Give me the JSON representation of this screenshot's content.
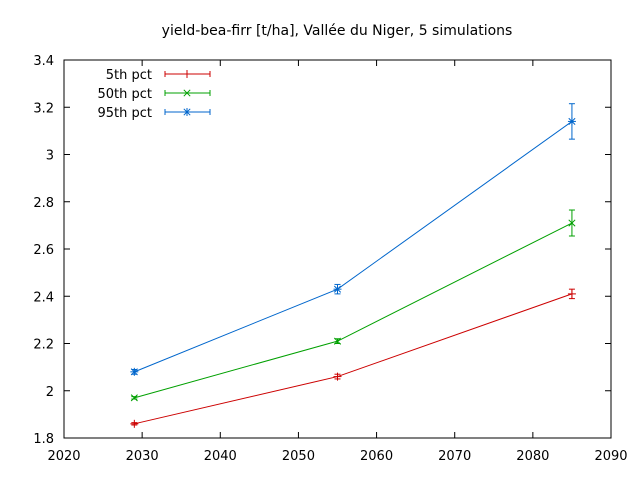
{
  "chart_data": {
    "type": "line",
    "title": "yield-bea-firr [t/ha], Vallée du Niger, 5 simulations",
    "xlabel": "",
    "ylabel": "",
    "xlim": [
      2020,
      2090
    ],
    "ylim": [
      1.8,
      3.4
    ],
    "x_ticks": [
      "2020",
      "2030",
      "2040",
      "2050",
      "2060",
      "2070",
      "2080",
      "2090"
    ],
    "y_ticks": [
      "1.8",
      "2",
      "2.2",
      "2.4",
      "2.6",
      "2.8",
      "3",
      "3.2",
      "3.4"
    ],
    "grid": false,
    "legend_position": "top-left",
    "x": [
      2029,
      2055,
      2085
    ],
    "series": [
      {
        "name": "5th pct",
        "color": "#cc0000",
        "marker": "plus",
        "values": [
          1.86,
          2.06,
          2.41
        ],
        "err": [
          0.005,
          0.01,
          0.02
        ]
      },
      {
        "name": "50th pct",
        "color": "#00a000",
        "marker": "cross",
        "values": [
          1.97,
          2.21,
          2.71
        ],
        "err": [
          0.005,
          0.01,
          0.055
        ]
      },
      {
        "name": "95th pct",
        "color": "#0066cc",
        "marker": "asterisk",
        "values": [
          2.08,
          2.43,
          3.14
        ],
        "err": [
          0.01,
          0.02,
          0.075
        ]
      }
    ]
  }
}
